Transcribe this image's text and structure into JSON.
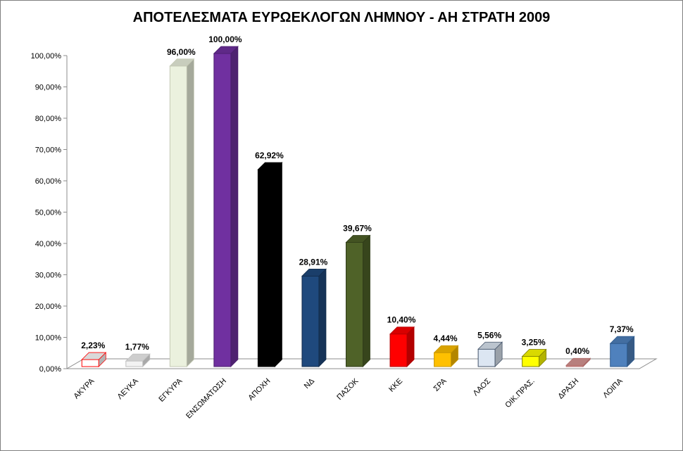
{
  "chart_data": {
    "type": "bar",
    "title": "ΑΠΟΤΕΛΕΣΜΑΤΑ ΕΥΡΩΕΚΛΟΓΩΝ ΛΗΜΝΟΥ - ΑΗ ΣΤΡΑΤΗ 2009",
    "xlabel": "",
    "ylabel": "",
    "ylim": [
      0,
      100
    ],
    "y_ticks": [
      "0,00%",
      "10,00%",
      "20,00%",
      "30,00%",
      "40,00%",
      "50,00%",
      "60,00%",
      "70,00%",
      "80,00%",
      "90,00%",
      "100,00%"
    ],
    "grid": false,
    "legend": "none",
    "categories": [
      "ΑΚΥΡΑ",
      "ΛΕΥΚΑ",
      "ΕΓΚΥΡΑ",
      "ΕΝΣΩΜΑΤΩΣΗ",
      "ΑΠΟΧΗ",
      "ΝΔ",
      "ΠΑΣΟΚ",
      "ΚΚΕ",
      "ΣΡΑ",
      "ΛΑΟΣ",
      "ΟΙΚ.ΠΡΑΣ.",
      "ΔΡΑΣΗ",
      "ΛΟΙΠΑ"
    ],
    "values": [
      2.23,
      1.77,
      96.0,
      100.0,
      62.92,
      28.91,
      39.67,
      10.4,
      4.44,
      5.56,
      3.25,
      0.4,
      7.37
    ],
    "data_labels": [
      "2,23%",
      "1,77%",
      "96,00%",
      "100,00%",
      "62,92%",
      "28,91%",
      "39,67%",
      "10,40%",
      "4,44%",
      "5,56%",
      "3,25%",
      "0,40%",
      "7,37%"
    ],
    "colors": [
      "#ffffff",
      "#f2f2f2",
      "#ebf1de",
      "#7030a0",
      "#000000",
      "#1f497d",
      "#4f6228",
      "#ff0000",
      "#ffc000",
      "#dce6f2",
      "#ffff00",
      "#d99694",
      "#4f81bd"
    ],
    "outlines": [
      "#ff0000",
      "#bfbfbf",
      "#c4c9b4",
      "#4b1e6e",
      "#000000",
      "#122b4a",
      "#2f3b18",
      "#b30000",
      "#c99700",
      "#44546a",
      "#7f7f00",
      "#b06b69",
      "#2e5b8f"
    ]
  }
}
